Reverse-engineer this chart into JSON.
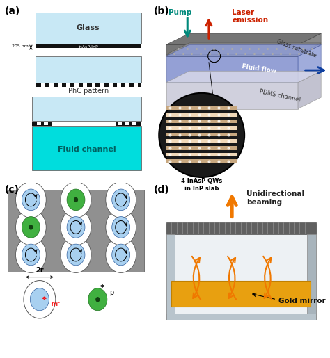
{
  "panel_labels": [
    "(a)",
    "(b)",
    "(c)",
    "(d)"
  ],
  "panel_label_fontsize": 10,
  "bg_color": "#ffffff",
  "glass_color": "#c8e8f5",
  "inp_color": "#111111",
  "fluid_color": "#00dddd",
  "pump_color": "#00897b",
  "laser_color": "#cc2200",
  "arrow_orange": "#f07800",
  "arrow_blue": "#1040a0",
  "gray_lattice": "#909090",
  "blue_circle": "#a8d0f0",
  "green_circle": "#40b040",
  "gold_color": "#e8a010"
}
